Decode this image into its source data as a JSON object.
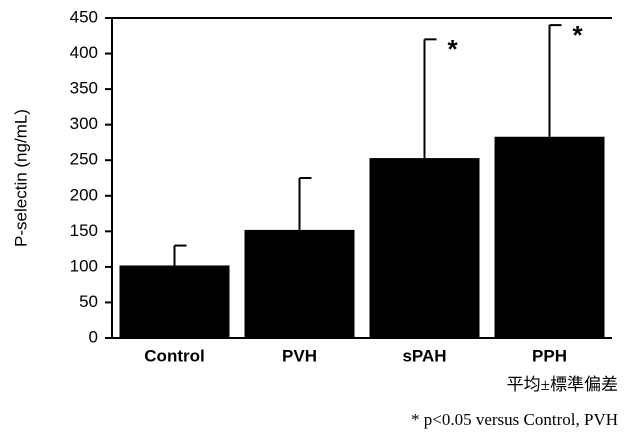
{
  "chart_data": {
    "type": "bar",
    "y_label": "P-selectin (ng/mL)",
    "categories": [
      "Control",
      "PVH",
      "sPAH",
      "PPH"
    ],
    "values": [
      102,
      152,
      253,
      283
    ],
    "errors": [
      28,
      73,
      167,
      157
    ],
    "color": "#000000",
    "ylim": [
      0,
      450
    ],
    "yticks": [
      0,
      50,
      100,
      150,
      200,
      250,
      300,
      350,
      400,
      450
    ],
    "grid": false,
    "annotations": [
      {
        "category": "sPAH",
        "text": "*"
      },
      {
        "category": "PPH",
        "text": "*"
      }
    ],
    "notes": [
      "平均±標準偏差",
      "* p<0.05 versus Control, PVH"
    ]
  }
}
